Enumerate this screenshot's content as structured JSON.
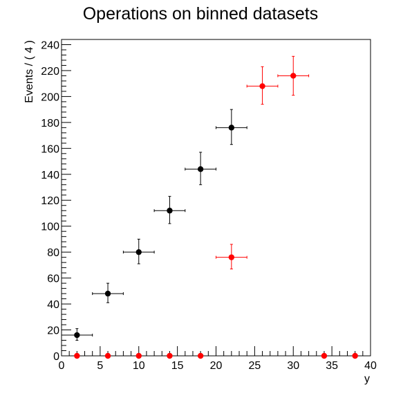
{
  "chart_data": {
    "type": "scatter",
    "title": "Operations on binned datasets",
    "xlabel": "y",
    "ylabel": "Events / ( 4 )",
    "xlim": [
      0,
      40
    ],
    "ylim": [
      0,
      244
    ],
    "x_ticks": [
      0,
      5,
      10,
      15,
      20,
      25,
      30,
      35,
      40
    ],
    "y_ticks": [
      0,
      20,
      40,
      60,
      80,
      100,
      120,
      140,
      160,
      180,
      200,
      220,
      240
    ],
    "grid": false,
    "legend": "none",
    "series": [
      {
        "color": "#000000",
        "points": [
          {
            "x": 2,
            "xerr": 2,
            "y": 16,
            "yerr_low": 4,
            "yerr_high": 5
          },
          {
            "x": 6,
            "xerr": 2,
            "y": 48,
            "yerr_low": 7,
            "yerr_high": 8
          },
          {
            "x": 10,
            "xerr": 2,
            "y": 80,
            "yerr_low": 9,
            "yerr_high": 10
          },
          {
            "x": 14,
            "xerr": 2,
            "y": 112,
            "yerr_low": 10,
            "yerr_high": 11
          },
          {
            "x": 18,
            "xerr": 2,
            "y": 144,
            "yerr_low": 12,
            "yerr_high": 13
          },
          {
            "x": 22,
            "xerr": 2,
            "y": 176,
            "yerr_low": 13,
            "yerr_high": 14
          }
        ]
      },
      {
        "color": "#ff0000",
        "points": [
          {
            "x": 2,
            "xerr": 0,
            "y": 0,
            "yerr_low": 0,
            "yerr_high": 0
          },
          {
            "x": 6,
            "xerr": 0,
            "y": 0,
            "yerr_low": 0,
            "yerr_high": 0
          },
          {
            "x": 10,
            "xerr": 0,
            "y": 0,
            "yerr_low": 0,
            "yerr_high": 0
          },
          {
            "x": 14,
            "xerr": 0,
            "y": 0,
            "yerr_low": 0,
            "yerr_high": 0
          },
          {
            "x": 18,
            "xerr": 0,
            "y": 0,
            "yerr_low": 0,
            "yerr_high": 0
          },
          {
            "x": 22,
            "xerr": 2,
            "y": 76,
            "yerr_low": 9,
            "yerr_high": 10
          },
          {
            "x": 26,
            "xerr": 2,
            "y": 208,
            "yerr_low": 14,
            "yerr_high": 15
          },
          {
            "x": 30,
            "xerr": 2,
            "y": 216,
            "yerr_low": 15,
            "yerr_high": 15
          },
          {
            "x": 34,
            "xerr": 0,
            "y": 0,
            "yerr_low": 0,
            "yerr_high": 0
          },
          {
            "x": 38,
            "xerr": 0,
            "y": 0,
            "yerr_low": 0,
            "yerr_high": 0
          }
        ]
      }
    ]
  }
}
